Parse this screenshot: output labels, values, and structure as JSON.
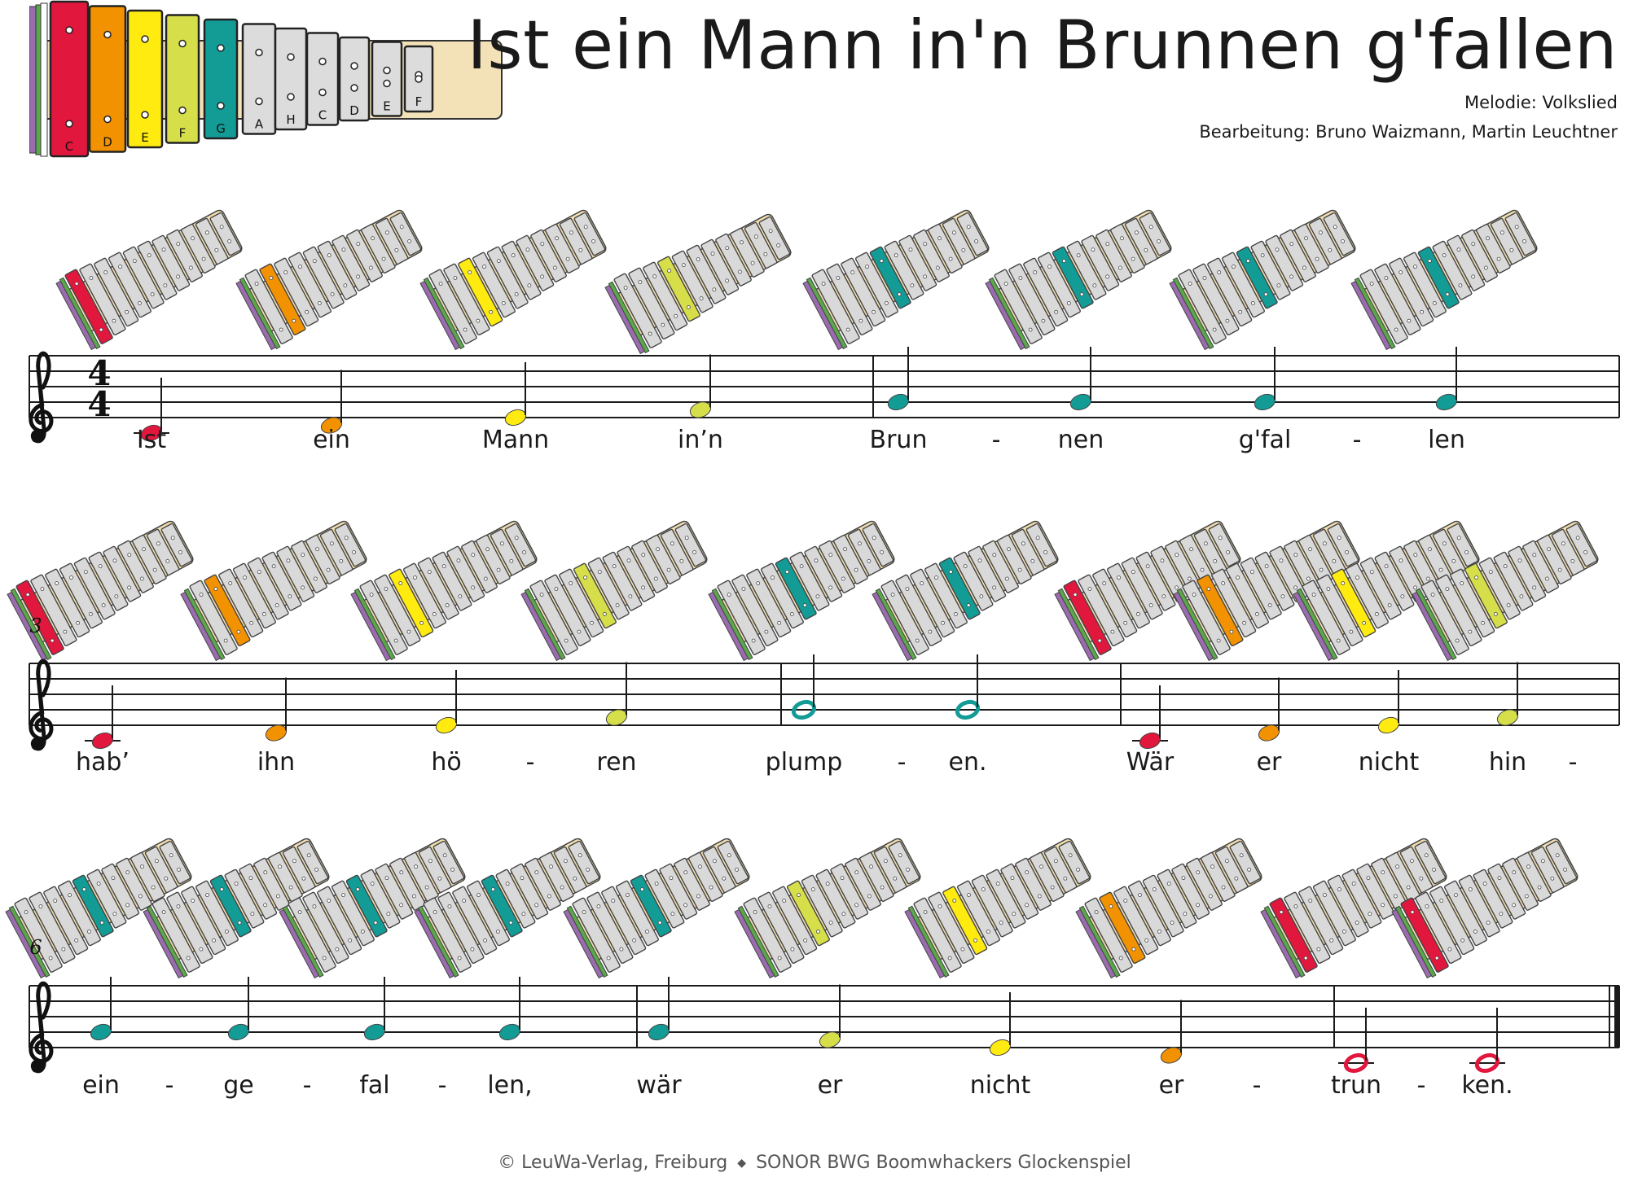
{
  "title": "Ist ein Mann in'n Brunnen g'fallen",
  "credits": {
    "melody": "Melodie: Volkslied",
    "arrangement": "Bearbeitung: Bruno Waizmann, Martin Leuchtner"
  },
  "reference_glockenspiel": {
    "bars": [
      {
        "label": "C",
        "color": "#e2173e"
      },
      {
        "label": "D",
        "color": "#f39200"
      },
      {
        "label": "E",
        "color": "#ffeb10"
      },
      {
        "label": "F",
        "color": "#d6df4a"
      },
      {
        "label": "G",
        "color": "#139b96"
      },
      {
        "label": "A",
        "color": "#dcdcdc"
      },
      {
        "label": "H",
        "color": "#dcdcdc"
      },
      {
        "label": "C",
        "color": "#dcdcdc"
      },
      {
        "label": "D",
        "color": "#dcdcdc"
      },
      {
        "label": "E",
        "color": "#dcdcdc"
      },
      {
        "label": "F",
        "color": "#dcdcdc"
      }
    ]
  },
  "pitch_colors": {
    "C4": "#e2173e",
    "D4": "#f39200",
    "E4": "#ffeb10",
    "F4": "#d6df4a",
    "G4": "#139b96"
  },
  "score": {
    "time_signature": {
      "top": "4",
      "bottom": "4"
    },
    "systems": [
      {
        "bar_number": "",
        "notes": [
          {
            "pitch": "C4",
            "duration": "quarter",
            "lyric": "Ist"
          },
          {
            "pitch": "D4",
            "duration": "quarter",
            "lyric": "ein"
          },
          {
            "pitch": "E4",
            "duration": "quarter",
            "lyric": "Mann"
          },
          {
            "pitch": "F4",
            "duration": "quarter",
            "lyric": "in’n"
          },
          {
            "pitch": "G4",
            "duration": "quarter",
            "lyric": "Brun"
          },
          {
            "pitch": "G4",
            "duration": "quarter",
            "lyric": "nen"
          },
          {
            "pitch": "G4",
            "duration": "quarter",
            "lyric": "g'fal"
          },
          {
            "pitch": "G4",
            "duration": "quarter",
            "lyric": "len"
          }
        ],
        "hyphens": [
          "-",
          "-"
        ]
      },
      {
        "bar_number": "3",
        "notes": [
          {
            "pitch": "C4",
            "duration": "quarter",
            "lyric": "hab’"
          },
          {
            "pitch": "D4",
            "duration": "quarter",
            "lyric": "ihn"
          },
          {
            "pitch": "E4",
            "duration": "quarter",
            "lyric": "hö"
          },
          {
            "pitch": "F4",
            "duration": "quarter",
            "lyric": "ren"
          },
          {
            "pitch": "G4",
            "duration": "half",
            "lyric": "plump"
          },
          {
            "pitch": "G4",
            "duration": "half",
            "lyric": "en."
          },
          {
            "pitch": "C4",
            "duration": "quarter",
            "lyric": "Wär"
          },
          {
            "pitch": "D4",
            "duration": "quarter",
            "lyric": "er"
          },
          {
            "pitch": "E4",
            "duration": "quarter",
            "lyric": "nicht"
          },
          {
            "pitch": "F4",
            "duration": "quarter",
            "lyric": "hin"
          }
        ],
        "hyphens": [
          "-",
          "-",
          "-"
        ]
      },
      {
        "bar_number": "6",
        "notes": [
          {
            "pitch": "G4",
            "duration": "quarter",
            "lyric": "ein"
          },
          {
            "pitch": "G4",
            "duration": "quarter",
            "lyric": "ge"
          },
          {
            "pitch": "G4",
            "duration": "quarter",
            "lyric": "fal"
          },
          {
            "pitch": "G4",
            "duration": "quarter",
            "lyric": "len,"
          },
          {
            "pitch": "G4",
            "duration": "quarter",
            "lyric": "wär"
          },
          {
            "pitch": "F4",
            "duration": "quarter",
            "lyric": "er"
          },
          {
            "pitch": "E4",
            "duration": "quarter",
            "lyric": "nicht"
          },
          {
            "pitch": "D4",
            "duration": "quarter",
            "lyric": "er"
          },
          {
            "pitch": "C4",
            "duration": "half",
            "lyric": "trun"
          },
          {
            "pitch": "C4",
            "duration": "half",
            "lyric": "ken."
          }
        ],
        "hyphens": [
          "-",
          "-",
          "-",
          "-",
          "-"
        ]
      }
    ]
  },
  "footer": {
    "copyright": "© LeuWa-Verlag, Freiburg",
    "separator": "◆",
    "instrument": "SONOR BWG Boomwhackers Glockenspiel"
  }
}
